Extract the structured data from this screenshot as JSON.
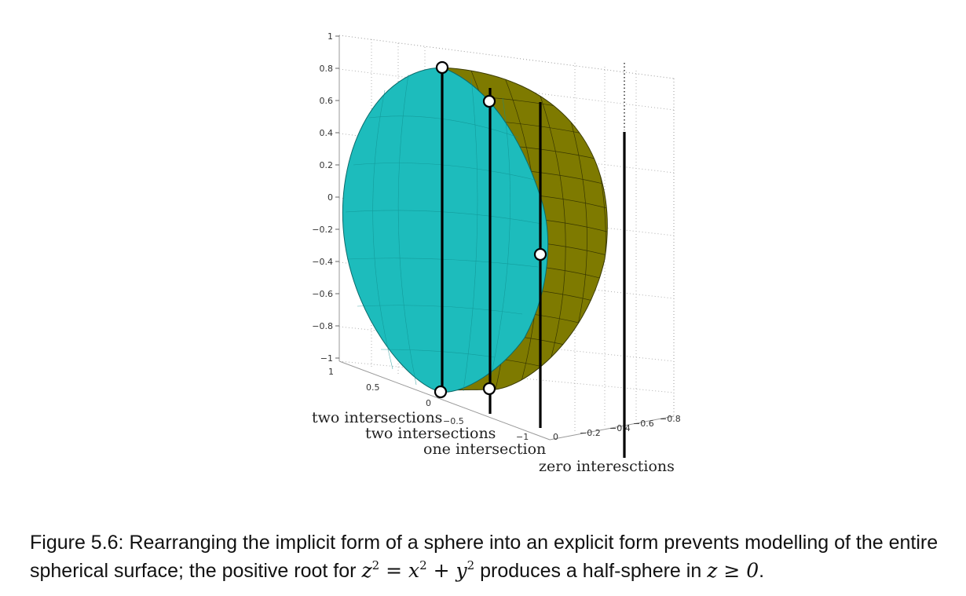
{
  "figure": {
    "z_ticks": [
      "1",
      "0.8",
      "0.6",
      "0.4",
      "0.2",
      "0",
      "−0.2",
      "−0.4",
      "−0.6",
      "−0.8",
      "−1"
    ],
    "x_ticks": [
      "1",
      "0.5",
      "0",
      "−0.5",
      "−1"
    ],
    "y_ticks": [
      "0",
      "−0.2",
      "−0.4",
      "−0.6",
      "−0.8"
    ],
    "annotations": [
      "two intersections",
      "two intersections",
      "one intersection",
      "zero interesctions"
    ],
    "colors": {
      "cut_face": "#1dbcbc",
      "surface": "#7e7a00",
      "mesh": "#3a3a00",
      "line": "#000000"
    }
  },
  "caption": {
    "lead": "Figure 5.6: Rearranging the implicit form of a sphere into an explicit form prevents modelling of the entire spherical surface; the positive root for",
    "equation": "z² = x² + y²",
    "middle": "produces a half-sphere in",
    "condition": "z ≥ 0",
    "end": "."
  }
}
